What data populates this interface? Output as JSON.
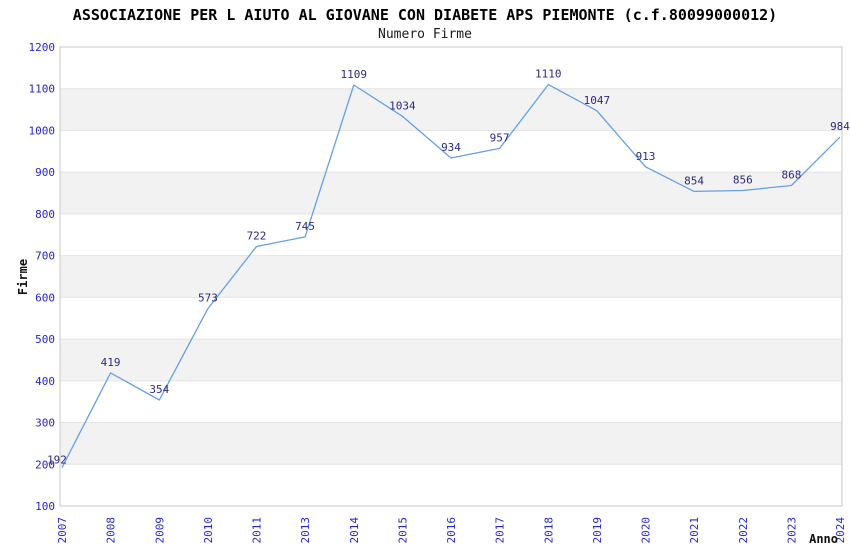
{
  "header": {
    "title": "ASSOCIAZIONE PER L AIUTO AL GIOVANE CON DIABETE APS PIEMONTE (c.f.80099000012)",
    "subtitle": "Numero Firme"
  },
  "chart_data": {
    "type": "line",
    "title": "ASSOCIAZIONE PER L AIUTO AL GIOVANE CON DIABETE APS PIEMONTE (c.f.80099000012)",
    "subtitle": "Numero Firme",
    "xlabel": "Anno",
    "ylabel": "Firme",
    "categories": [
      "2007",
      "2008",
      "2009",
      "2010",
      "2011",
      "2013",
      "2014",
      "2015",
      "2016",
      "2017",
      "2018",
      "2019",
      "2020",
      "2021",
      "2022",
      "2023",
      "2024"
    ],
    "values": [
      192,
      419,
      354,
      573,
      722,
      745,
      1109,
      1034,
      934,
      957,
      1110,
      1047,
      913,
      854,
      856,
      868,
      984
    ],
    "ylim": [
      100,
      1200
    ],
    "ytick_step": 100,
    "yticks": [
      100,
      200,
      300,
      400,
      500,
      600,
      700,
      800,
      900,
      1000,
      1100,
      1200
    ],
    "grid": "horizontal-bands-alternating",
    "legend": "none",
    "data_labels_visible": true,
    "colors": {
      "line": "#64a0e4",
      "tick_label": "#2525cf",
      "data_label": "#2b2b80",
      "band": "#f2f2f2",
      "gridline": "#e4e4e4",
      "border": "#c9c9c9",
      "title": "#000000",
      "subtitle": "#1a1a1a",
      "axis_title": "#111111",
      "background": "#ffffff"
    }
  }
}
